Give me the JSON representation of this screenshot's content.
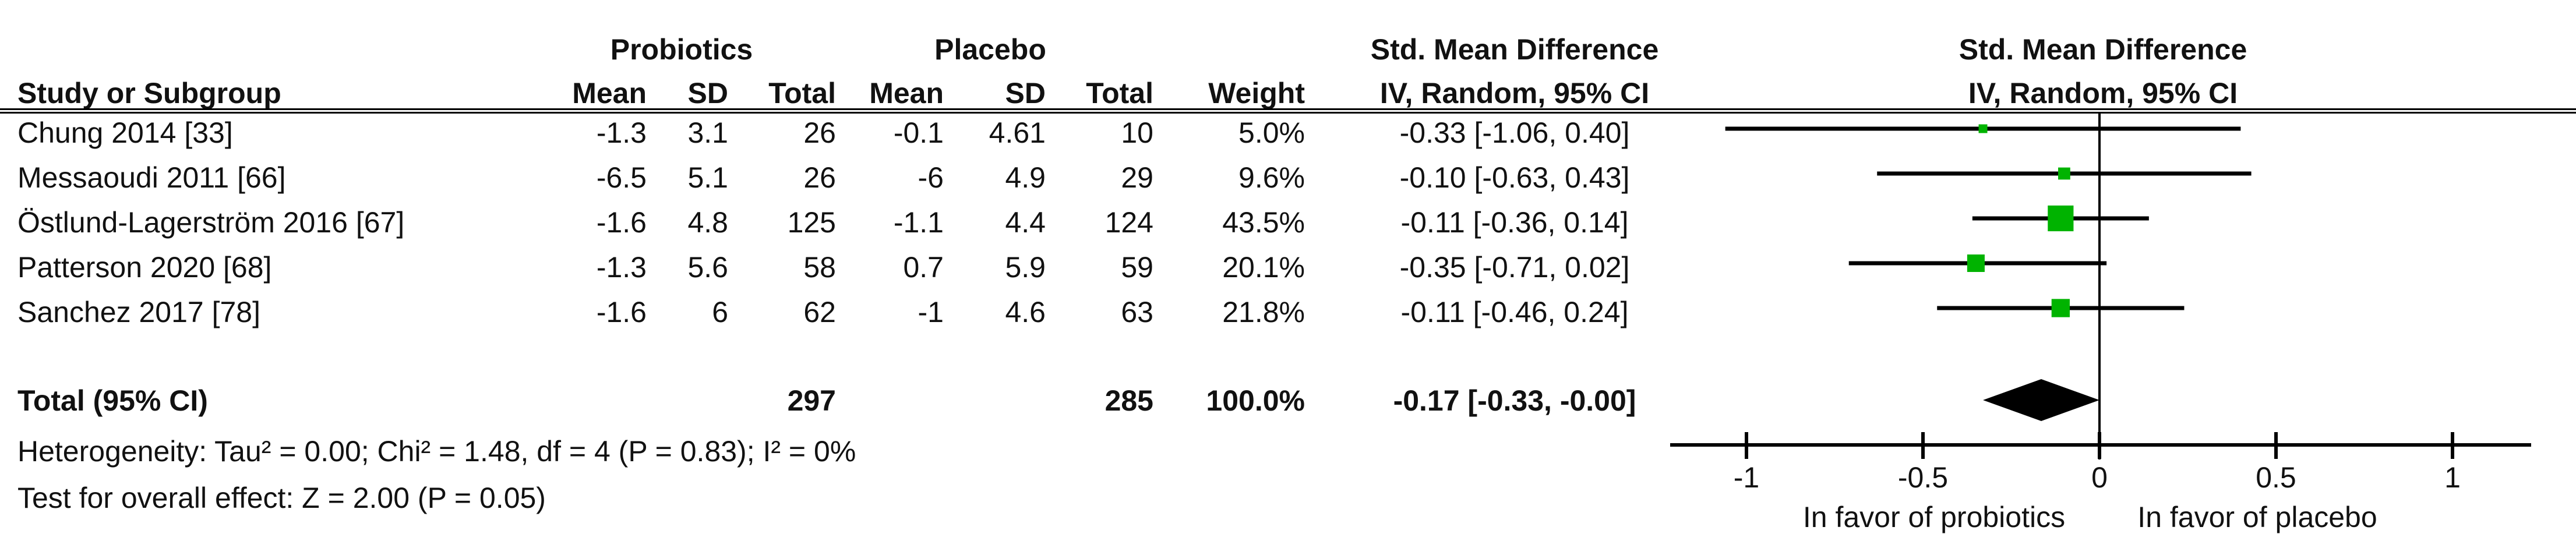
{
  "table": {
    "group_headers": {
      "group1": "Probiotics",
      "group2": "Placebo",
      "effect_table": "Std. Mean Difference",
      "effect_plot": "Std. Mean Difference"
    },
    "column_headers": {
      "study": "Study or Subgroup",
      "mean1": "Mean",
      "sd1": "SD",
      "total1": "Total",
      "mean2": "Mean",
      "sd2": "SD",
      "total2": "Total",
      "weight": "Weight",
      "ci_table": "IV, Random, 95% CI",
      "ci_plot": "IV, Random, 95% CI"
    },
    "rows": [
      {
        "study": "Chung 2014 [33]",
        "mean1": "-1.3",
        "sd1": "3.1",
        "total1": "26",
        "mean2": "-0.1",
        "sd2": "4.61",
        "total2": "10",
        "weight": "5.0%",
        "ci_text": "-0.33 [-1.06, 0.40]"
      },
      {
        "study": "Messaoudi 2011 [66]",
        "mean1": "-6.5",
        "sd1": "5.1",
        "total1": "26",
        "mean2": "-6",
        "sd2": "4.9",
        "total2": "29",
        "weight": "9.6%",
        "ci_text": "-0.10 [-0.63, 0.43]"
      },
      {
        "study": "Östlund-Lagerström 2016 [67]",
        "mean1": "-1.6",
        "sd1": "4.8",
        "total1": "125",
        "mean2": "-1.1",
        "sd2": "4.4",
        "total2": "124",
        "weight": "43.5%",
        "ci_text": "-0.11 [-0.36, 0.14]"
      },
      {
        "study": "Patterson 2020 [68]",
        "mean1": "-1.3",
        "sd1": "5.6",
        "total1": "58",
        "mean2": "0.7",
        "sd2": "5.9",
        "total2": "59",
        "weight": "20.1%",
        "ci_text": "-0.35 [-0.71, 0.02]"
      },
      {
        "study": "Sanchez 2017 [78]",
        "mean1": "-1.6",
        "sd1": "6",
        "total1": "62",
        "mean2": "-1",
        "sd2": "4.6",
        "total2": "63",
        "weight": "21.8%",
        "ci_text": "-0.11 [-0.46, 0.24]"
      }
    ],
    "total_row": {
      "label": "Total (95% CI)",
      "total1": "297",
      "total2": "285",
      "weight": "100.0%",
      "ci_text": "-0.17 [-0.33, -0.00]"
    },
    "footnotes": {
      "heterogeneity": "Heterogeneity: Tau² = 0.00; Chi² = 1.48, df = 4 (P = 0.83); I² = 0%",
      "overall_effect": "Test for overall effect: Z = 2.00 (P = 0.05)"
    }
  },
  "chart_data": {
    "type": "scatter",
    "subtype": "forest-plot",
    "title": "Std. Mean Difference, IV, Random, 95% CI",
    "series": [
      {
        "name": "Chung 2014 [33]",
        "smd": -0.33,
        "ci_low": -1.06,
        "ci_high": 0.4,
        "weight_pct": 5.0
      },
      {
        "name": "Messaoudi 2011 [66]",
        "smd": -0.1,
        "ci_low": -0.63,
        "ci_high": 0.43,
        "weight_pct": 9.6
      },
      {
        "name": "Östlund-Lagerström 2016 [67]",
        "smd": -0.11,
        "ci_low": -0.36,
        "ci_high": 0.14,
        "weight_pct": 43.5
      },
      {
        "name": "Patterson 2020 [68]",
        "smd": -0.35,
        "ci_low": -0.71,
        "ci_high": 0.02,
        "weight_pct": 20.1
      },
      {
        "name": "Sanchez 2017 [78]",
        "smd": -0.11,
        "ci_low": -0.46,
        "ci_high": 0.24,
        "weight_pct": 21.8
      }
    ],
    "diamond": {
      "smd": -0.17,
      "ci_low": -0.33,
      "ci_high": 0.0
    },
    "x_ticks": [
      -1,
      -0.5,
      0,
      0.5,
      1
    ],
    "x_tick_labels": [
      "-1",
      "-0.5",
      "0",
      "0.5",
      "1"
    ],
    "xlim": [
      -1.22,
      1.22
    ],
    "xlabel_left": "In favor of probiotics",
    "xlabel_right": "In favor of placebo",
    "marker_color": "#00B300",
    "line_color": "#000000",
    "diamond_color": "#000000",
    "grid": false
  }
}
